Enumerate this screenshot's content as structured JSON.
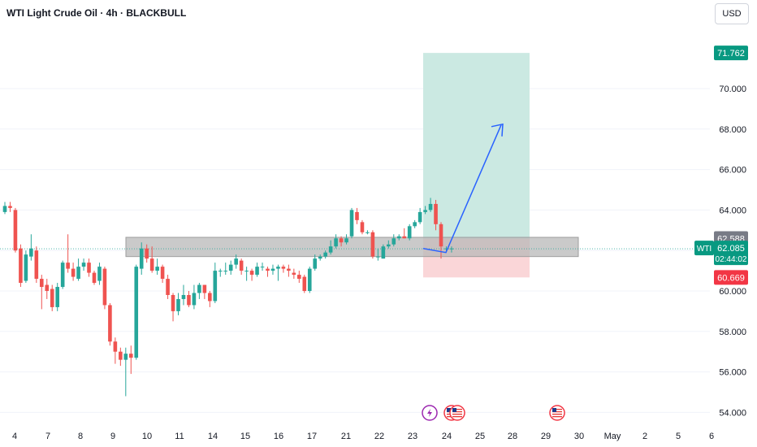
{
  "header": {
    "symbol_title": "WTI Light Crude Oil · 4h · BLACKBULL",
    "currency": "USD"
  },
  "price_labels": {
    "target": "71.762",
    "entry": "62.588",
    "current": "62.085",
    "countdown": "02:44:02",
    "stop": "60.669",
    "symbol_tag": "WTI"
  },
  "colors": {
    "up": "#26a69a",
    "down": "#ef5350",
    "target_zone": "#cbe9e2",
    "stop_zone": "#fad6d8",
    "arrow": "#2962ff",
    "zone_gray": "#b8b8b8"
  },
  "chart_data": {
    "type": "candlestick",
    "timeframe": "4h",
    "y_ticks": [
      "54.000",
      "56.000",
      "58.000",
      "60.000",
      "62.000",
      "64.000",
      "66.000",
      "68.000",
      "70.000"
    ],
    "x_ticks": [
      "4",
      "7",
      "8",
      "9",
      "10",
      "11",
      "14",
      "15",
      "16",
      "17",
      "21",
      "22",
      "23",
      "24",
      "25",
      "28",
      "29",
      "30",
      "May",
      "2",
      "5",
      "6"
    ],
    "ylim": [
      54,
      72
    ],
    "candles": [
      [
        63.9,
        64.2,
        64.4,
        63.8
      ],
      [
        64.2,
        64.1,
        64.4,
        63.9
      ],
      [
        64.0,
        62.0,
        64.1,
        61.9
      ],
      [
        62.1,
        60.4,
        62.3,
        60.2
      ],
      [
        60.5,
        61.8,
        62.0,
        60.4
      ],
      [
        61.7,
        62.1,
        62.8,
        61.5
      ],
      [
        62.0,
        60.6,
        62.2,
        60.4
      ],
      [
        60.6,
        60.2,
        60.8,
        59.1
      ],
      [
        60.3,
        60.0,
        60.6,
        59.6
      ],
      [
        60.1,
        59.2,
        60.3,
        59.0
      ],
      [
        59.2,
        60.2,
        60.4,
        59.0
      ],
      [
        60.2,
        61.4,
        61.5,
        60.1
      ],
      [
        61.4,
        61.1,
        62.8,
        60.9
      ],
      [
        61.1,
        60.7,
        61.4,
        60.5
      ],
      [
        60.6,
        61.2,
        61.6,
        60.5
      ],
      [
        61.2,
        61.4,
        61.6,
        61.0
      ],
      [
        61.4,
        60.9,
        61.6,
        60.7
      ],
      [
        60.9,
        60.4,
        61.0,
        60.3
      ],
      [
        60.5,
        61.2,
        61.4,
        60.3
      ],
      [
        61.1,
        59.3,
        61.2,
        59.1
      ],
      [
        59.3,
        57.5,
        59.4,
        57.3
      ],
      [
        57.5,
        57.0,
        57.7,
        56.4
      ],
      [
        57.0,
        56.6,
        57.2,
        56.3
      ],
      [
        56.6,
        56.9,
        57.2,
        54.8
      ],
      [
        56.9,
        56.7,
        57.3,
        55.9
      ],
      [
        56.7,
        61.2,
        61.3,
        56.6
      ],
      [
        61.1,
        62.1,
        62.4,
        60.8
      ],
      [
        62.1,
        61.6,
        62.3,
        61.4
      ],
      [
        61.6,
        61.0,
        62.2,
        60.9
      ],
      [
        61.0,
        61.2,
        61.6,
        60.8
      ],
      [
        61.2,
        60.6,
        61.3,
        60.4
      ],
      [
        60.6,
        59.8,
        60.8,
        59.6
      ],
      [
        59.8,
        59.0,
        59.9,
        58.5
      ],
      [
        59.0,
        59.6,
        59.9,
        58.8
      ],
      [
        59.6,
        59.8,
        60.3,
        59.3
      ],
      [
        59.8,
        59.3,
        60.0,
        59.2
      ],
      [
        59.3,
        59.9,
        60.3,
        59.1
      ],
      [
        59.9,
        60.3,
        60.4,
        59.6
      ],
      [
        60.3,
        59.9,
        60.3,
        59.6
      ],
      [
        59.9,
        59.5,
        60.0,
        59.2
      ],
      [
        59.5,
        61.0,
        61.4,
        59.4
      ],
      [
        61.0,
        61.0,
        61.1,
        60.7
      ],
      [
        61.0,
        61.0,
        61.4,
        60.8
      ],
      [
        61.0,
        61.3,
        61.5,
        60.8
      ],
      [
        61.3,
        61.6,
        61.8,
        61.1
      ],
      [
        61.5,
        61.0,
        61.6,
        60.8
      ],
      [
        61.0,
        61.0,
        61.2,
        60.5
      ],
      [
        61.0,
        60.8,
        61.1,
        60.5
      ],
      [
        60.8,
        61.2,
        61.4,
        60.7
      ],
      [
        61.2,
        61.2,
        61.4,
        61.0
      ],
      [
        61.1,
        61.0,
        61.2,
        60.7
      ],
      [
        61.0,
        61.1,
        61.3,
        60.8
      ],
      [
        61.1,
        61.2,
        61.3,
        60.5
      ],
      [
        61.2,
        61.1,
        61.3,
        60.9
      ],
      [
        61.1,
        61.0,
        61.3,
        60.7
      ],
      [
        60.9,
        60.8,
        61.1,
        60.6
      ],
      [
        60.8,
        60.6,
        61.0,
        60.4
      ],
      [
        60.7,
        60.0,
        60.8,
        59.9
      ],
      [
        60.0,
        61.1,
        61.2,
        59.9
      ],
      [
        61.1,
        61.6,
        61.8,
        61.0
      ],
      [
        61.6,
        61.7,
        61.8,
        61.5
      ],
      [
        61.7,
        61.9,
        62.0,
        61.6
      ],
      [
        61.9,
        62.2,
        62.5,
        61.8
      ],
      [
        62.2,
        62.6,
        62.8,
        62.1
      ],
      [
        62.6,
        62.4,
        62.7,
        62.2
      ],
      [
        62.4,
        62.6,
        62.8,
        62.3
      ],
      [
        62.7,
        64.0,
        64.1,
        62.6
      ],
      [
        63.9,
        63.5,
        64.1,
        63.3
      ],
      [
        63.4,
        62.9,
        63.5,
        62.8
      ],
      [
        62.9,
        62.9,
        63.0,
        62.8
      ],
      [
        62.9,
        61.7,
        63.0,
        61.6
      ],
      [
        61.7,
        61.7,
        62.1,
        61.5
      ],
      [
        61.6,
        62.2,
        62.3,
        61.6
      ],
      [
        62.2,
        62.3,
        62.5,
        62.1
      ],
      [
        62.3,
        62.6,
        62.8,
        62.2
      ],
      [
        62.6,
        62.7,
        62.8,
        62.5
      ],
      [
        62.7,
        62.6,
        63.1,
        62.6
      ],
      [
        62.6,
        63.2,
        63.3,
        62.5
      ],
      [
        63.2,
        63.4,
        63.5,
        63.1
      ],
      [
        63.4,
        63.9,
        64.1,
        63.3
      ],
      [
        63.9,
        64.0,
        64.2,
        63.8
      ],
      [
        64.0,
        64.3,
        64.6,
        63.9
      ],
      [
        64.3,
        63.3,
        64.5,
        63.0
      ],
      [
        63.3,
        62.2,
        63.4,
        61.6
      ],
      [
        62.1,
        62.1,
        62.2,
        61.9
      ],
      [
        62.1,
        62.1,
        62.2,
        61.9
      ]
    ],
    "gray_zone": [
      61.7,
      62.65
    ],
    "position": {
      "entry": 62.588,
      "target": 71.762,
      "stop": 60.669,
      "current": 62.085
    },
    "projection": [
      [
        62.1,
        61.9,
        62.5
      ],
      [
        62.6,
        68.2
      ]
    ]
  }
}
